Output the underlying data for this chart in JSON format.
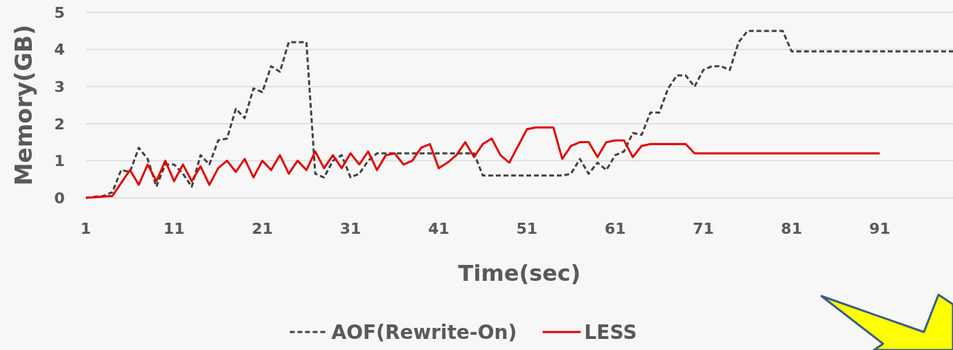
{
  "chart_data": {
    "type": "line",
    "xlabel": "Time(sec)",
    "ylabel": "Memory(GB)",
    "xlim": [
      1,
      99.3
    ],
    "xticks": [
      1,
      11,
      21,
      31,
      41,
      51,
      61,
      71,
      81,
      91
    ],
    "ylim": [
      0,
      5
    ],
    "yticks": [
      0,
      1,
      2,
      3,
      4,
      5
    ],
    "grid": "y",
    "legend": "bottom",
    "series": [
      {
        "name": "AOF(Rewrite-On)",
        "color": "#404040",
        "line_style": "dashed",
        "x": [
          1,
          3,
          4,
          5,
          6,
          7,
          8,
          9,
          10,
          11,
          12,
          13,
          14,
          15,
          16,
          17,
          18,
          19,
          20,
          21,
          22,
          23,
          24,
          26,
          27,
          28,
          29,
          30,
          31,
          32,
          33,
          34,
          45,
          46,
          53,
          55,
          56,
          57,
          58,
          59,
          60,
          61,
          62,
          63,
          64,
          65,
          66,
          67,
          68,
          69,
          70,
          71,
          72,
          73,
          74,
          75,
          76,
          80,
          81,
          99.3
        ],
        "values": [
          0,
          0.05,
          0.15,
          0.75,
          0.7,
          1.35,
          1.05,
          0.3,
          0.9,
          0.9,
          0.65,
          0.3,
          1.15,
          0.9,
          1.55,
          1.6,
          2.4,
          2.15,
          2.95,
          2.85,
          3.55,
          3.4,
          4.2,
          4.2,
          0.65,
          0.55,
          1,
          1.15,
          0.55,
          0.65,
          1,
          1.2,
          1.2,
          0.6,
          0.6,
          0.6,
          0.65,
          1.05,
          0.65,
          0.95,
          0.75,
          1.15,
          1.25,
          1.75,
          1.7,
          2.3,
          2.3,
          2.95,
          3.3,
          3.3,
          3,
          3.45,
          3.55,
          3.55,
          3.45,
          4.2,
          4.5,
          4.5,
          3.95,
          3.95
        ]
      },
      {
        "name": "LESS",
        "color": "#e00000",
        "line_style": "solid",
        "x": [
          1,
          4,
          6,
          7,
          8,
          9,
          10,
          11,
          12,
          13,
          14,
          15,
          16,
          17,
          18,
          19,
          20,
          21,
          22,
          23,
          24,
          25,
          26,
          27,
          28,
          29,
          30,
          31,
          32,
          33,
          34,
          35,
          36,
          37,
          38,
          39,
          40,
          41,
          42,
          43,
          44,
          45,
          46,
          47,
          48,
          49,
          50,
          51,
          52,
          54,
          55,
          56,
          57,
          58,
          59,
          60,
          61,
          62,
          63,
          64,
          65,
          67,
          68,
          69,
          70,
          91
        ],
        "values": [
          0,
          0.05,
          0.75,
          0.35,
          0.9,
          0.45,
          1,
          0.45,
          0.9,
          0.45,
          0.85,
          0.35,
          0.8,
          1,
          0.7,
          1.05,
          0.55,
          1,
          0.75,
          1.15,
          0.65,
          1,
          0.75,
          1.25,
          0.8,
          1.15,
          0.8,
          1.2,
          0.9,
          1.25,
          0.75,
          1.15,
          1.2,
          0.9,
          1,
          1.35,
          1.45,
          0.8,
          0.95,
          1.15,
          1.5,
          1.1,
          1.45,
          1.6,
          1.15,
          0.95,
          1.4,
          1.85,
          1.9,
          1.9,
          1.05,
          1.4,
          1.5,
          1.5,
          1.1,
          1.5,
          1.55,
          1.55,
          1.1,
          1.4,
          1.45,
          1.45,
          1.45,
          1.45,
          1.2,
          1.2
        ]
      }
    ]
  }
}
